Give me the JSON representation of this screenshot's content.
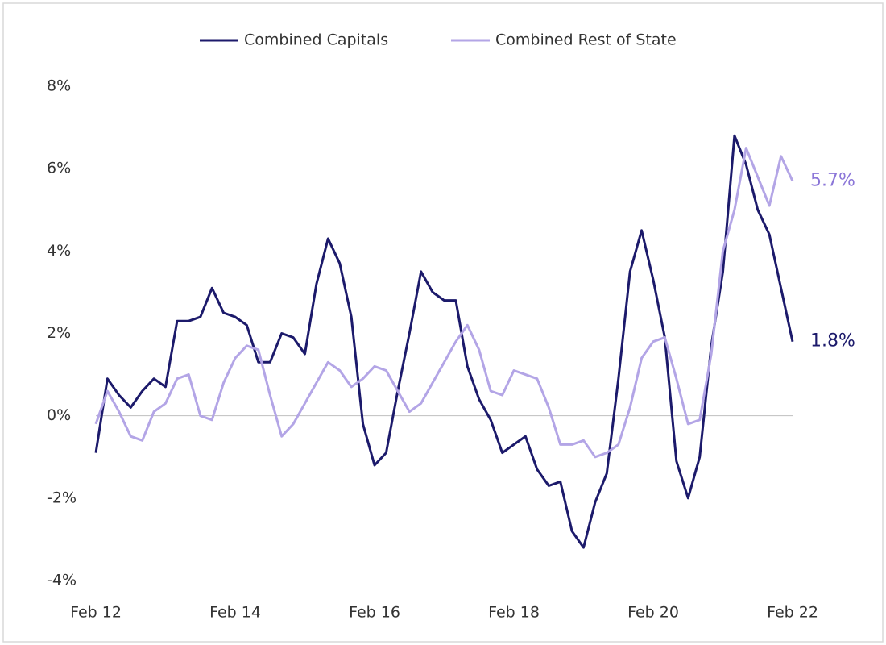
{
  "chart_data": {
    "type": "line",
    "categories": [
      "Feb 12",
      null,
      null,
      null,
      null,
      null,
      null,
      null,
      null,
      null,
      null,
      null,
      "Feb 14",
      null,
      null,
      null,
      null,
      null,
      null,
      null,
      null,
      null,
      null,
      null,
      "Feb 16",
      null,
      null,
      null,
      null,
      null,
      null,
      null,
      null,
      null,
      null,
      null,
      "Feb 18",
      null,
      null,
      null,
      null,
      null,
      null,
      null,
      null,
      null,
      null,
      null,
      "Feb 20",
      null,
      null,
      null,
      null,
      null,
      null,
      null,
      null,
      null,
      null,
      null,
      "Feb 22"
    ],
    "series": [
      {
        "name": "Combined Capitals",
        "color": "#1c1a6b",
        "end_label": "1.8%",
        "label_color": "#1c1a6b",
        "values": [
          -0.9,
          0.9,
          0.5,
          0.2,
          0.6,
          0.9,
          0.7,
          2.3,
          2.3,
          2.4,
          3.1,
          2.5,
          2.4,
          2.2,
          1.3,
          1.3,
          2.0,
          1.9,
          1.5,
          3.2,
          4.3,
          3.7,
          2.4,
          -0.2,
          -1.2,
          -0.9,
          0.6,
          2.0,
          3.5,
          3.0,
          2.8,
          2.8,
          1.2,
          0.4,
          -0.1,
          -0.9,
          -0.7,
          -0.5,
          -1.3,
          -1.7,
          -1.6,
          -2.8,
          -3.2,
          -2.1,
          -1.4,
          0.9,
          3.5,
          4.5,
          3.3,
          1.9,
          -1.1,
          -2.0,
          -1.0,
          1.7,
          3.5,
          6.8,
          6.1,
          5.0,
          4.4,
          3.1,
          1.8
        ]
      },
      {
        "name": "Combined Rest of State",
        "color": "#b3a5e6",
        "end_label": "5.7%",
        "label_color": "#8b76d8",
        "values": [
          -0.2,
          0.6,
          0.1,
          -0.5,
          -0.6,
          0.1,
          0.3,
          0.9,
          1.0,
          0.0,
          -0.1,
          0.8,
          1.4,
          1.7,
          1.6,
          0.5,
          -0.5,
          -0.2,
          0.3,
          0.8,
          1.3,
          1.1,
          0.7,
          0.9,
          1.2,
          1.1,
          0.6,
          0.1,
          0.3,
          0.8,
          1.3,
          1.8,
          2.2,
          1.6,
          0.6,
          0.5,
          1.1,
          1.0,
          0.9,
          0.2,
          -0.7,
          -0.7,
          -0.6,
          -1.0,
          -0.9,
          -0.7,
          0.2,
          1.4,
          1.8,
          1.9,
          0.9,
          -0.2,
          -0.1,
          1.5,
          4.0,
          5.0,
          6.5,
          5.8,
          5.1,
          6.3,
          5.7
        ]
      }
    ],
    "ylim": [
      -4,
      8
    ],
    "yticks": [
      {
        "value": -4,
        "label": "-4%"
      },
      {
        "value": -2,
        "label": "-2%"
      },
      {
        "value": 0,
        "label": "0%"
      },
      {
        "value": 2,
        "label": "2%"
      },
      {
        "value": 4,
        "label": "4%"
      },
      {
        "value": 6,
        "label": "6%"
      },
      {
        "value": 8,
        "label": "8%"
      }
    ],
    "grid": false,
    "legend": "top"
  }
}
